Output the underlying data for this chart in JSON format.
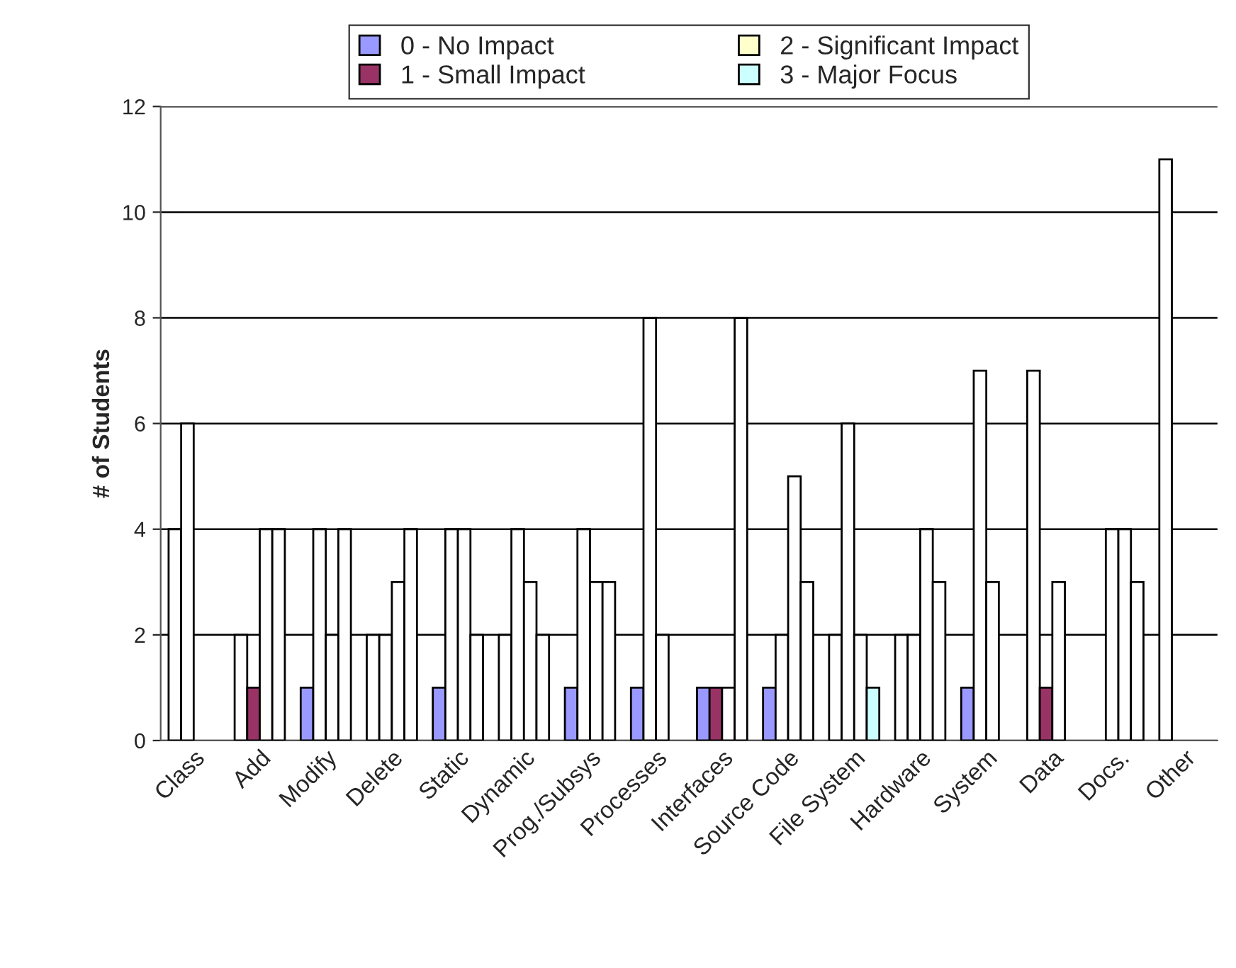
{
  "chart_data": {
    "type": "bar",
    "ylabel": "# of Students",
    "categories": [
      "Class",
      "Add",
      "Modify",
      "Delete",
      "Static",
      "Dynamic",
      "Prog./Subsys",
      "Processes",
      "Interfaces",
      "Source Code",
      "File System",
      "Hardware",
      "System",
      "Data",
      "Docs.",
      "Other"
    ],
    "series": [
      {
        "name": "0 - No Impact",
        "color": "#9999ff",
        "values": [
          4,
          2,
          1,
          2,
          1,
          2,
          1,
          1,
          1,
          1,
          2,
          2,
          1,
          7,
          null,
          11
        ],
        "colors": [
          "#ffffff",
          "#ffffff",
          "#9999ff",
          "#ffffff",
          "#9999ff",
          "#ffffff",
          "#9999ff",
          "#9999ff",
          "#9999ff",
          "#9999ff",
          "#ffffff",
          "#ffffff",
          "#9999ff",
          "#ffffff",
          "#ffffff",
          "#ffffff"
        ]
      },
      {
        "name": "1 - Small Impact",
        "color": "#993366",
        "values": [
          6,
          1,
          4,
          2,
          4,
          4,
          4,
          8,
          1,
          2,
          6,
          2,
          7,
          1,
          4,
          null
        ],
        "colors": [
          "#ffffff",
          "#993366",
          "#ffffff",
          "#ffffff",
          "#ffffff",
          "#ffffff",
          "#ffffff",
          "#ffffff",
          "#993366",
          "#ffffff",
          "#ffffff",
          "#ffffff",
          "#ffffff",
          "#993366",
          "#ffffff",
          "#ffffff"
        ]
      },
      {
        "name": "2 - Significant Impact",
        "color": "#ffffcc",
        "values": [
          null,
          4,
          2,
          3,
          4,
          3,
          3,
          2,
          1,
          5,
          2,
          4,
          3,
          3,
          4,
          null
        ],
        "colors": [
          "#ffffff",
          "#ffffff",
          "#ffffff",
          "#ffffff",
          "#ffffff",
          "#ffffff",
          "#ffffff",
          "#ffffff",
          "#ffffff",
          "#ffffff",
          "#ffffff",
          "#ffffff",
          "#ffffff",
          "#ffffff",
          "#ffffff",
          "#ffffff"
        ]
      },
      {
        "name": "3 - Major Focus",
        "color": "#ccffff",
        "values": [
          null,
          4,
          4,
          4,
          2,
          2,
          3,
          null,
          8,
          3,
          1,
          3,
          null,
          null,
          3,
          null
        ],
        "colors": [
          "#ffffff",
          "#ffffff",
          "#ffffff",
          "#ffffff",
          "#ffffff",
          "#ffffff",
          "#ffffff",
          "#ffffff",
          "#ffffff",
          "#ffffff",
          "#ccffff",
          "#ffffff",
          "#ffffff",
          "#ffffff",
          "#ffffff",
          "#ffffff"
        ]
      }
    ],
    "ylim": [
      0,
      12
    ],
    "yticks": [
      0,
      2,
      4,
      6,
      8,
      10,
      12
    ],
    "grid": "y",
    "legend": "top"
  }
}
